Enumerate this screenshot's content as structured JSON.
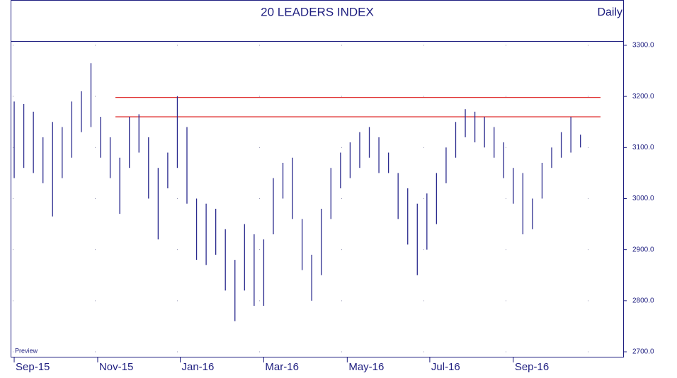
{
  "chart_data": {
    "type": "range-bar",
    "title": "20 LEADERS INDEX",
    "period": "Daily",
    "watermark": "Preview",
    "color": "#2a2a8e",
    "reference_color": "#e03030",
    "reference_lines": [
      3198,
      3160
    ],
    "x": [
      0,
      1,
      2,
      3,
      4,
      5,
      6,
      7,
      8,
      9,
      10,
      11,
      12,
      13,
      14,
      15,
      16,
      17,
      18,
      19,
      20,
      21,
      22,
      23,
      24,
      25,
      26,
      27,
      28,
      29,
      30,
      31,
      32,
      33,
      34,
      35,
      36,
      37,
      38,
      39,
      40,
      41,
      42,
      43,
      44,
      45,
      46,
      47,
      48,
      49,
      50,
      51,
      52,
      53,
      54,
      55,
      56,
      57,
      58,
      59
    ],
    "high": [
      3190,
      3185,
      3170,
      3120,
      3150,
      3140,
      3190,
      3210,
      3265,
      3160,
      3120,
      3080,
      3160,
      3165,
      3120,
      3060,
      3090,
      3200,
      3140,
      3000,
      2990,
      2980,
      2940,
      2880,
      2950,
      2930,
      2920,
      3040,
      3070,
      3080,
      2960,
      2890,
      2980,
      3060,
      3090,
      3110,
      3130,
      3140,
      3120,
      3090,
      3050,
      3020,
      2990,
      3010,
      3050,
      3100,
      3150,
      3175,
      3170,
      3160,
      3140,
      3110,
      3060,
      3050,
      3000,
      3070,
      3100,
      3130,
      3160,
      3125
    ],
    "low": [
      3040,
      3060,
      3050,
      3030,
      2965,
      3040,
      3080,
      3130,
      3140,
      3080,
      3040,
      2970,
      3060,
      3090,
      3000,
      2920,
      3020,
      3060,
      2990,
      2880,
      2870,
      2890,
      2820,
      2760,
      2820,
      2790,
      2790,
      2930,
      3000,
      2960,
      2860,
      2800,
      2850,
      2960,
      3020,
      3040,
      3060,
      3080,
      3050,
      3050,
      2960,
      2910,
      2850,
      2900,
      2950,
      3030,
      3080,
      3120,
      3110,
      3100,
      3080,
      3040,
      2990,
      2930,
      2940,
      3000,
      3060,
      3080,
      3090,
      3100
    ],
    "xlim": [
      -0.15,
      63.45
    ],
    "xticks": [
      {
        "value": 0,
        "label": "Sep-15"
      },
      {
        "value": 8.7,
        "label": "Nov-15"
      },
      {
        "value": 17.3,
        "label": "Jan-16"
      },
      {
        "value": 26,
        "label": "Mar-16"
      },
      {
        "value": 34.7,
        "label": "May-16"
      },
      {
        "value": 43.3,
        "label": "Jul-16"
      },
      {
        "value": 52,
        "label": "Sep-16"
      }
    ],
    "ylim": [
      2700,
      3300
    ],
    "yticks": [
      {
        "value": 2700,
        "label": "2700.0"
      },
      {
        "value": 2800,
        "label": "2800.0"
      },
      {
        "value": 2900,
        "label": "2900.0"
      },
      {
        "value": 3000,
        "label": "3000.0"
      },
      {
        "value": 3100,
        "label": "3100.0"
      },
      {
        "value": 3200,
        "label": "3200.0"
      },
      {
        "value": 3300,
        "label": "3300.0"
      }
    ],
    "grid": true
  }
}
